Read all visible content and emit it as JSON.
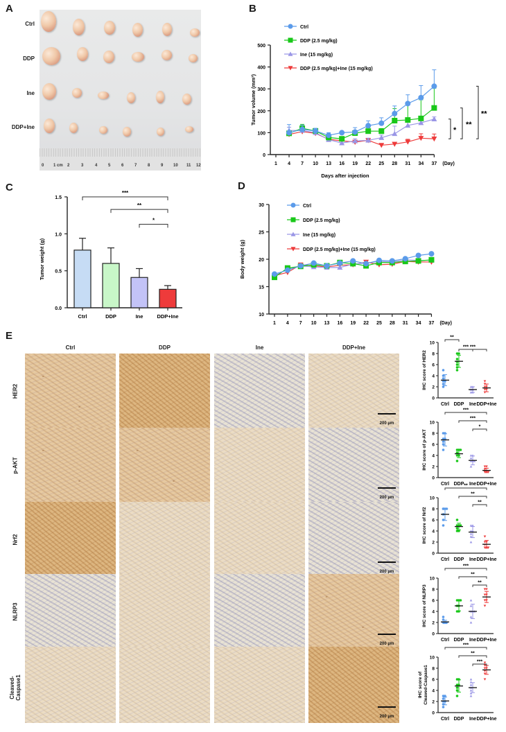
{
  "panels": {
    "A": {
      "letter": "A",
      "row_labels": [
        "Ctrl",
        "DDP",
        "Ine",
        "DDP+Ine"
      ],
      "ruler_labels": [
        "0",
        "1 cm",
        "2",
        "3",
        "4",
        "5",
        "6",
        "7",
        "8",
        "9",
        "10",
        "11",
        "12"
      ]
    },
    "B": {
      "letter": "B"
    },
    "C": {
      "letter": "C"
    },
    "D": {
      "letter": "D"
    },
    "E": {
      "letter": "E",
      "columns": [
        "Ctrl",
        "DDP",
        "Ine",
        "DDP+Ine"
      ],
      "rows": [
        "HER2",
        "p-AKT",
        "Nrf2",
        "NLRP3",
        "Cleaved-\nCaspase1"
      ],
      "scale_bar": "200 μm"
    }
  },
  "colors": {
    "ctrl": "#5b9bea",
    "ddp": "#19c819",
    "ine": "#9a96e6",
    "combo": "#ee3b3b",
    "ctrl_bar": "#c6dcf5",
    "ddp_bar": "#c8f7c8",
    "ine_bar": "#c3c3f7",
    "combo_bar": "#ee3b3b"
  },
  "chart_data": [
    {
      "id": "B",
      "type": "line",
      "title": "",
      "xlabel": "Days after injection",
      "ylabel": "Tumor volume (mm³)",
      "x_unit_label": "(Day)",
      "x": [
        1,
        4,
        7,
        10,
        13,
        16,
        19,
        22,
        25,
        28,
        31,
        34,
        37
      ],
      "ylim": [
        0,
        500
      ],
      "yticks": [
        0,
        100,
        200,
        300,
        400,
        500
      ],
      "legend": [
        "Ctrl",
        "DDP (2.5 mg/kg)",
        "Ine (15 mg/kg)",
        "DDP (2.5 mg/kg)+Ine (15 mg/kg)"
      ],
      "legend_position": "upper-left",
      "series": [
        {
          "name": "Ctrl",
          "marker": "circle",
          "values": [
            null,
            100,
            115,
            108,
            88,
            100,
            103,
            132,
            143,
            187,
            233,
            260,
            312
          ],
          "errors": [
            null,
            37,
            20,
            12,
            12,
            5,
            20,
            22,
            25,
            35,
            40,
            55,
            75
          ]
        },
        {
          "name": "DDP (2.5 mg/kg)",
          "marker": "square",
          "values": [
            null,
            97,
            120,
            108,
            78,
            72,
            98,
            107,
            107,
            155,
            158,
            165,
            213
          ],
          "errors": [
            null,
            10,
            18,
            10,
            8,
            10,
            10,
            15,
            12,
            55,
            75,
            85,
            90
          ]
        },
        {
          "name": "Ine (15 mg/kg)",
          "marker": "triangle-up",
          "values": [
            null,
            110,
            110,
            100,
            68,
            53,
            62,
            65,
            77,
            95,
            133,
            145,
            162
          ],
          "errors": [
            null,
            15,
            10,
            8,
            8,
            10,
            10,
            10,
            12,
            35,
            20,
            10,
            10
          ]
        },
        {
          "name": "DDP (2.5 mg/kg)+Ine (15 mg/kg)",
          "marker": "triangle-down",
          "values": [
            null,
            92,
            105,
            97,
            70,
            63,
            57,
            65,
            43,
            48,
            58,
            75,
            72
          ],
          "errors": [
            null,
            8,
            8,
            8,
            6,
            6,
            6,
            8,
            6,
            8,
            12,
            20,
            22
          ]
        }
      ],
      "annotations": [
        "*",
        "**",
        "**"
      ]
    },
    {
      "id": "C",
      "type": "bar",
      "title": "",
      "xlabel": "",
      "ylabel": "Tumor weight (g)",
      "categories": [
        "Ctrl",
        "DDP",
        "Ine",
        "DDP+Ine"
      ],
      "values": [
        0.78,
        0.6,
        0.41,
        0.25
      ],
      "errors": [
        0.16,
        0.21,
        0.12,
        0.05
      ],
      "ylim": [
        0,
        1.5
      ],
      "yticks": [
        "0.0",
        "0.5",
        "1.0",
        "1.5"
      ],
      "annotations": [
        {
          "from": "Ctrl",
          "to": "DDP+Ine",
          "label": "***"
        },
        {
          "from": "DDP",
          "to": "DDP+Ine",
          "label": "**"
        },
        {
          "from": "Ine",
          "to": "DDP+Ine",
          "label": "*"
        }
      ]
    },
    {
      "id": "D",
      "type": "line",
      "title": "",
      "xlabel": "Days after injection",
      "ylabel": "Body weight (g)",
      "x_unit_label": "(Day)",
      "x": [
        1,
        4,
        7,
        10,
        13,
        16,
        19,
        22,
        25,
        28,
        31,
        34,
        37
      ],
      "ylim": [
        10,
        30
      ],
      "yticks": [
        10,
        15,
        20,
        25,
        30
      ],
      "legend": [
        "Ctrl",
        "DDP (2.5 mg/kg)",
        "Ine (15 mg/kg)",
        "DDP (2.5 mg/kg)+Ine (15 mg/kg)"
      ],
      "legend_position": "upper-left",
      "series": [
        {
          "name": "Ctrl",
          "marker": "circle",
          "values": [
            17.3,
            18.0,
            18.8,
            19.3,
            18.8,
            19.3,
            19.7,
            19.2,
            19.8,
            19.7,
            20.1,
            20.7,
            21.0
          ]
        },
        {
          "name": "DDP (2.5 mg/kg)",
          "marker": "square",
          "values": [
            16.7,
            18.4,
            18.7,
            19.0,
            18.8,
            19.4,
            19.2,
            18.8,
            19.4,
            19.4,
            19.6,
            19.7,
            19.9
          ]
        },
        {
          "name": "Ine (15 mg/kg)",
          "marker": "triangle-up",
          "values": [
            17.0,
            18.2,
            18.8,
            18.6,
            18.5,
            18.5,
            19.1,
            19.3,
            19.6,
            19.5,
            19.9,
            19.8,
            19.8
          ]
        },
        {
          "name": "DDP (2.5 mg/kg)+Ine (15 mg/kg)",
          "marker": "triangle-down",
          "values": [
            17.0,
            17.6,
            19.0,
            18.8,
            18.6,
            18.9,
            19.0,
            19.5,
            19.0,
            19.1,
            19.6,
            19.5,
            19.5
          ]
        }
      ]
    },
    {
      "id": "E-HER2",
      "type": "scatter",
      "ylabel": "IHC score of HER2",
      "categories": [
        "Ctrl",
        "DDP",
        "Ine",
        "DDP+Ine"
      ],
      "means": [
        3.2,
        6.6,
        1.5,
        1.8
      ],
      "sd": [
        1.0,
        1.1,
        0.5,
        0.7
      ],
      "points": [
        [
          2,
          2.5,
          3,
          3,
          3.5,
          4,
          5
        ],
        [
          5,
          5.5,
          6,
          6.5,
          7,
          8,
          8
        ],
        [
          1,
          1,
          1.5,
          1.5,
          2,
          2
        ],
        [
          1,
          1.5,
          1.5,
          2,
          2,
          2.5,
          3
        ]
      ],
      "ylim": [
        0,
        10
      ],
      "yticks": [
        0,
        2,
        4,
        6,
        8,
        10
      ],
      "annotations": [
        {
          "from": "Ctrl",
          "to": "DDP",
          "label": "**"
        },
        {
          "from": "DDP",
          "to": "Ine",
          "label": "***"
        },
        {
          "from": "DDP",
          "to": "DDP+Ine",
          "label": "***"
        }
      ]
    },
    {
      "id": "E-p-AKT",
      "type": "scatter",
      "ylabel": "IHC score of p-AKT",
      "categories": [
        "Ctrl",
        "DDP",
        "Ine",
        "DDP+Ine"
      ],
      "means": [
        6.8,
        4.3,
        3.1,
        1.3
      ],
      "sd": [
        1.1,
        0.7,
        0.8,
        0.4
      ],
      "points": [
        [
          5,
          6,
          6.5,
          7,
          7,
          8,
          8
        ],
        [
          3,
          4,
          4,
          4.5,
          5,
          5,
          5
        ],
        [
          2,
          3,
          3,
          3,
          3.5,
          4,
          4
        ],
        [
          1,
          1,
          1,
          1.2,
          1.5,
          2,
          2
        ]
      ],
      "ylim": [
        0,
        10
      ],
      "yticks": [
        0,
        2,
        4,
        6,
        8,
        10
      ],
      "annotations": [
        {
          "from": "Ctrl",
          "to": "DDP+Ine",
          "label": "***"
        },
        {
          "from": "DDP",
          "to": "DDP+Ine",
          "label": "***"
        },
        {
          "from": "Ine",
          "to": "DDP+Ine",
          "label": "*"
        }
      ]
    },
    {
      "id": "E-Nrf2",
      "type": "scatter",
      "ylabel": "IHC score of Nrf2",
      "categories": [
        "Ctrl",
        "DDP",
        "Ine",
        "DDP+Ine"
      ],
      "means": [
        7.0,
        4.8,
        3.8,
        1.6
      ],
      "sd": [
        1.1,
        0.6,
        1.0,
        0.7
      ],
      "points": [
        [
          5,
          6,
          7,
          8,
          8,
          8,
          8
        ],
        [
          4,
          4,
          4.5,
          5,
          5,
          5,
          6
        ],
        [
          2,
          3,
          3.5,
          4,
          4,
          5,
          5
        ],
        [
          1,
          1,
          1,
          1.5,
          2,
          2,
          3
        ]
      ],
      "ylim": [
        0,
        10
      ],
      "yticks": [
        0,
        2,
        4,
        6,
        8,
        10
      ],
      "annotations": [
        {
          "from": "Ctrl",
          "to": "DDP+Ine",
          "label": "**"
        },
        {
          "from": "DDP",
          "to": "DDP+Ine",
          "label": "**"
        },
        {
          "from": "Ine",
          "to": "DDP+Ine",
          "label": "**"
        }
      ]
    },
    {
      "id": "E-NLRP3",
      "type": "scatter",
      "ylabel": "IHC score of NLRP3",
      "categories": [
        "Ctrl",
        "DDP",
        "Ine",
        "DDP+Ine"
      ],
      "means": [
        2.1,
        5.0,
        4.0,
        6.6
      ],
      "sd": [
        0.3,
        0.9,
        1.3,
        1.0
      ],
      "points": [
        [
          2,
          2,
          2,
          2,
          2,
          2.5,
          3
        ],
        [
          4,
          4,
          5,
          5,
          6,
          6,
          6
        ],
        [
          2,
          3,
          4,
          4,
          4,
          5,
          6
        ],
        [
          5,
          6,
          6,
          7,
          7,
          8,
          8
        ]
      ],
      "ylim": [
        0,
        10
      ],
      "yticks": [
        0,
        2,
        4,
        6,
        8,
        10
      ],
      "annotations": [
        {
          "from": "Ctrl",
          "to": "DDP+Ine",
          "label": "***"
        },
        {
          "from": "DDP",
          "to": "DDP+Ine",
          "label": "**"
        },
        {
          "from": "Ine",
          "to": "DDP+Ine",
          "label": "**"
        }
      ]
    },
    {
      "id": "E-Cleaved-Caspase1",
      "type": "scatter",
      "ylabel": "IHC score of Cleaved-Caspase1",
      "categories": [
        "Ctrl",
        "DDP",
        "Ine",
        "DDP+Ine"
      ],
      "means": [
        2.1,
        4.8,
        4.5,
        7.7
      ],
      "sd": [
        0.7,
        1.1,
        0.9,
        0.8
      ],
      "points": [
        [
          1,
          1.5,
          2,
          2,
          2.5,
          3,
          3
        ],
        [
          3,
          4,
          4.5,
          5,
          5,
          6,
          6
        ],
        [
          3,
          3.5,
          4,
          4.5,
          5,
          5.5,
          6
        ],
        [
          6,
          7,
          7.5,
          8,
          8,
          8.5,
          9
        ]
      ],
      "ylim": [
        0,
        10
      ],
      "yticks": [
        0,
        2,
        4,
        6,
        8,
        10
      ],
      "annotations": [
        {
          "from": "Ctrl",
          "to": "DDP+Ine",
          "label": "***"
        },
        {
          "from": "DDP",
          "to": "DDP+Ine",
          "label": "**"
        },
        {
          "from": "Ine",
          "to": "DDP+Ine",
          "label": "***"
        }
      ]
    }
  ]
}
